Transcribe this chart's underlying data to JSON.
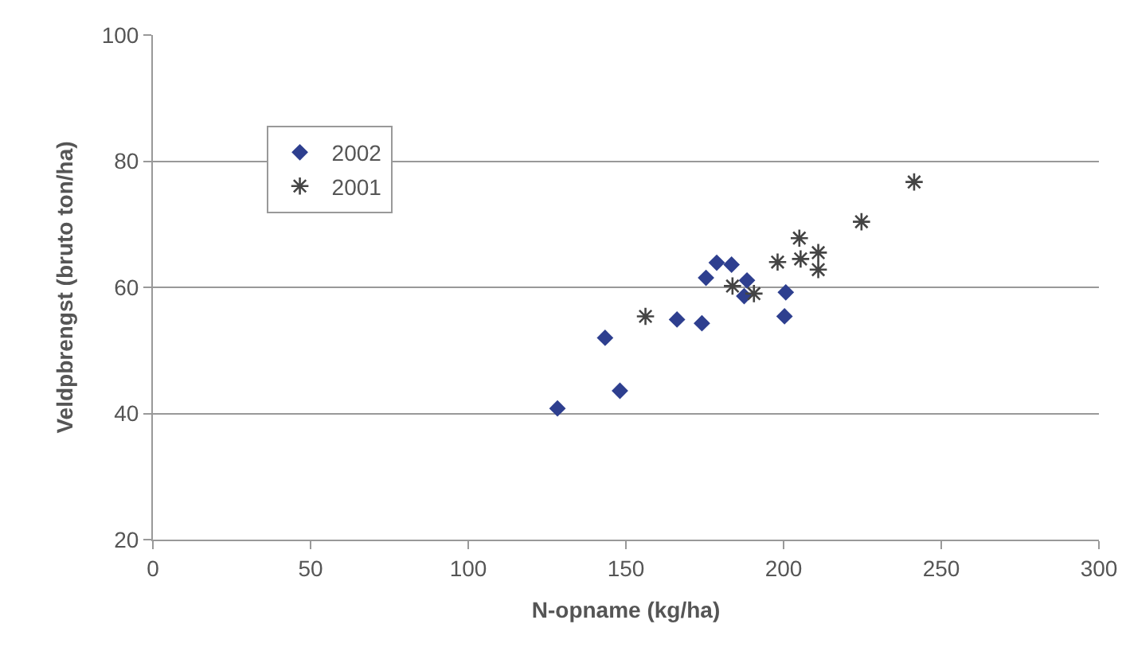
{
  "chart_data": {
    "type": "scatter",
    "xlabel": "N-opname (kg/ha)",
    "ylabel": "Veldpbrengst (bruto ton/ha)",
    "xlim": [
      0,
      300
    ],
    "xticks": [
      0,
      50,
      100,
      150,
      200,
      250,
      300
    ],
    "ylim": [
      20,
      100
    ],
    "yticks": [
      20,
      40,
      60,
      80,
      100
    ],
    "grid": "y",
    "legend": "top left",
    "series": [
      {
        "name": "2002",
        "color": "#2e3f8f",
        "marker": "diamond",
        "x": [
          128.3,
          143.4,
          148.1,
          166.2,
          174.1,
          175.4,
          178.8,
          183.5,
          188.4,
          187.5,
          200.7,
          200.3
        ],
        "values": [
          40.8,
          52.0,
          43.6,
          54.9,
          54.3,
          61.5,
          63.9,
          63.6,
          61.1,
          58.6,
          59.2,
          55.4
        ]
      },
      {
        "name": "2001",
        "color": "#444444",
        "marker": "cross",
        "x": [
          156.2,
          183.8,
          190.6,
          198.1,
          205.4,
          205,
          211,
          211,
          224.7,
          241.4
        ],
        "values": [
          55.4,
          60.2,
          59.0,
          64.0,
          64.5,
          67.8,
          65.5,
          62.8,
          70.4,
          76.7
        ]
      }
    ]
  }
}
